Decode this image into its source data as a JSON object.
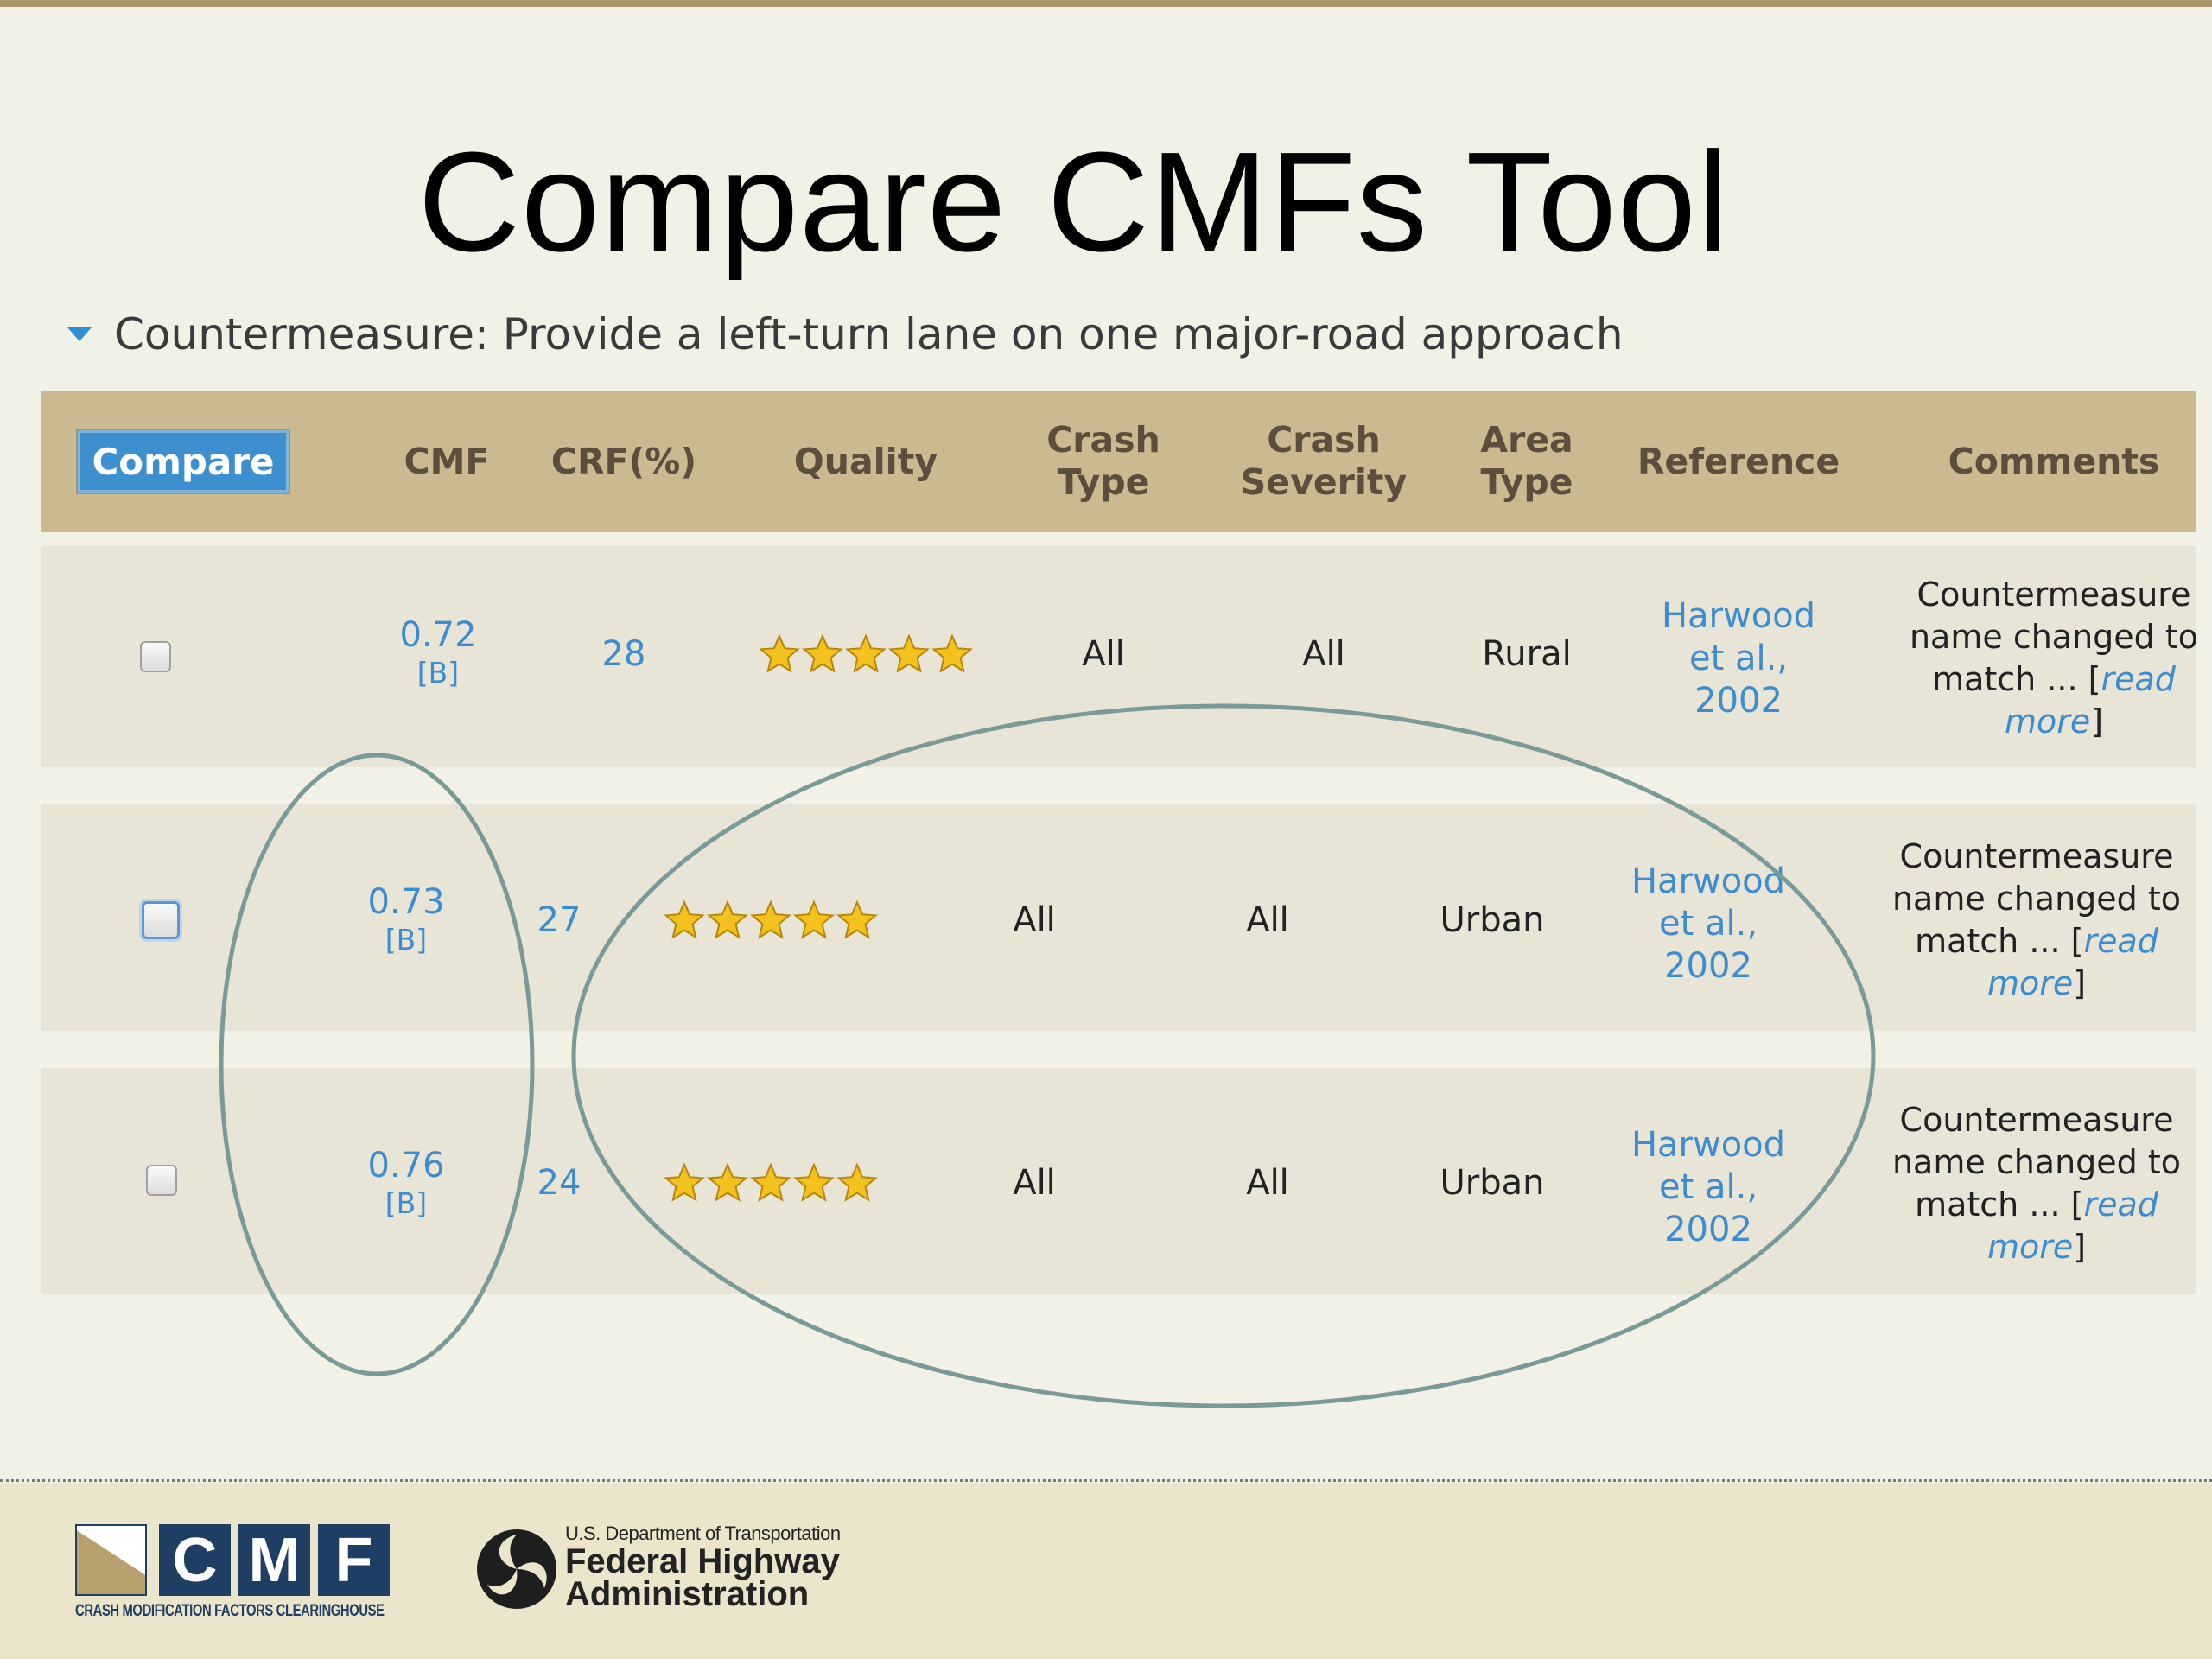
{
  "slide": {
    "title": "Compare CMFs Tool",
    "countermeasure": "Countermeasure: Provide a left-turn lane on one major-road approach"
  },
  "table": {
    "compare_button": "Compare",
    "headers": {
      "cmf": "CMF",
      "crf": "CRF(%)",
      "quality": "Quality",
      "crash_type_1": "Crash",
      "crash_type_2": "Type",
      "crash_severity_1": "Crash",
      "crash_severity_2": "Severity",
      "area_type_1": "Area",
      "area_type_2": "Type",
      "reference": "Reference",
      "comments": "Comments"
    },
    "rows": [
      {
        "cmf": "0.72",
        "grade": "[B]",
        "crf": "28",
        "quality_stars": 5,
        "crash_type": "All",
        "crash_severity": "All",
        "area_type": "Rural",
        "ref_1": "Harwood",
        "ref_2": "et al.,",
        "ref_3": "2002",
        "comment_1": "Countermeasure",
        "comment_2": "name changed to",
        "comment_3": "match ... [",
        "comment_link_1": "read",
        "comment_link_2": "more",
        "comment_4": "]"
      },
      {
        "cmf": "0.73",
        "grade": "[B]",
        "crf": "27",
        "quality_stars": 5,
        "crash_type": "All",
        "crash_severity": "All",
        "area_type": "Urban",
        "ref_1": "Harwood",
        "ref_2": "et al.,",
        "ref_3": "2002",
        "comment_1": "Countermeasure",
        "comment_2": "name changed to",
        "comment_3": "match ... [",
        "comment_link_1": "read",
        "comment_link_2": "more",
        "comment_4": "]"
      },
      {
        "cmf": "0.76",
        "grade": "[B]",
        "crf": "24",
        "quality_stars": 5,
        "crash_type": "All",
        "crash_severity": "All",
        "area_type": "Urban",
        "ref_1": "Harwood",
        "ref_2": "et al.,",
        "ref_3": "2002",
        "comment_1": "Countermeasure",
        "comment_2": "name changed to",
        "comment_3": "match ... [",
        "comment_link_1": "read",
        "comment_link_2": "more",
        "comment_4": "]"
      }
    ]
  },
  "footer": {
    "cmf_logo_letters": [
      "C",
      "M",
      "F"
    ],
    "cmf_logo_subtitle": "CRASH MODIFICATION FACTORS CLEARINGHOUSE",
    "dot_line": "U.S. Department of Transportation",
    "fhwa_line_1": "Federal Highway",
    "fhwa_line_2": "Administration"
  },
  "colors": {
    "header_bg": "#cbb990",
    "row_bg": "#e8e5d7",
    "link": "#3d8cd0",
    "annotation_ellipse": "#7a9a98",
    "compare_button": "#3d8fd0",
    "star": "#f4c21f"
  }
}
